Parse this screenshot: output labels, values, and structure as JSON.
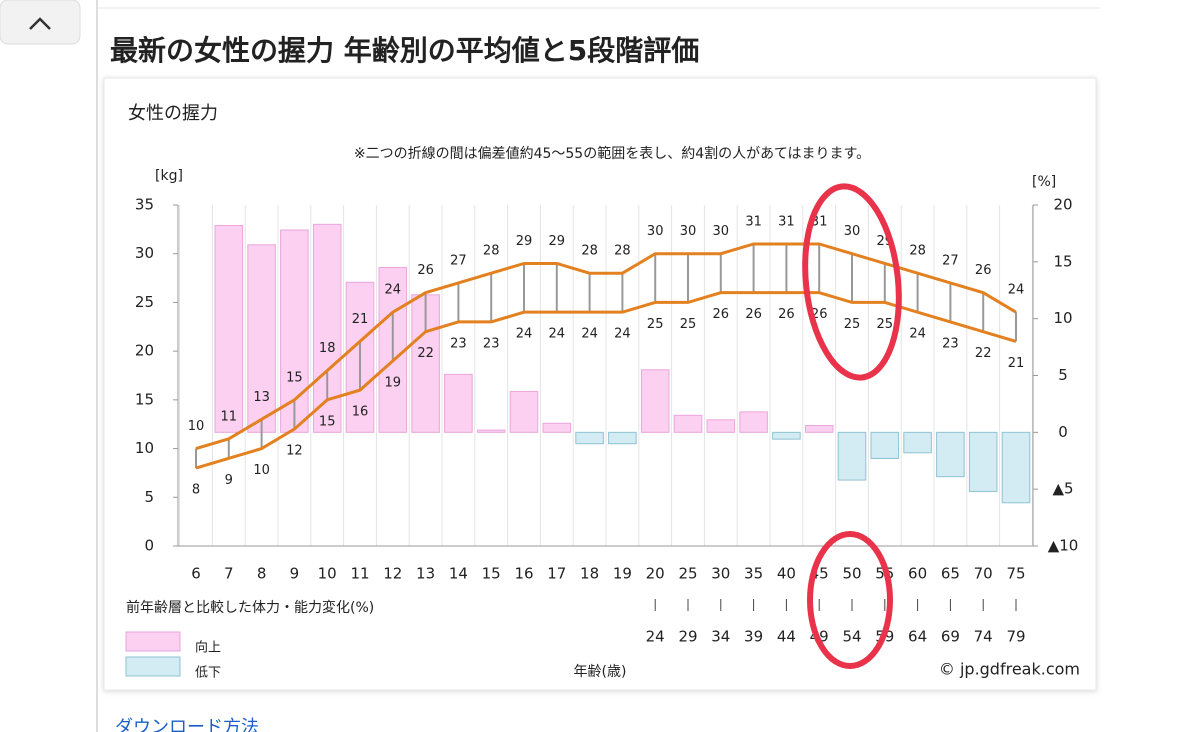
{
  "page": {
    "heading": "最新の女性の握力 年齢別の平均値と5段階評価",
    "link": "ダウンロード方法"
  },
  "chart_data": {
    "type": "combo",
    "title": "女性の握力",
    "note": "※二つの折線の間は偏差値約45〜55の範囲を表し、約4割の人があてはまります。",
    "y_label": "[kg]",
    "y2_label": "[%]",
    "x_label": "年齢(歳)",
    "bar_caption": "前年齢層と比較した体力・能力変化(%)",
    "copyright": "© jp.gdfreak.com",
    "categories": [
      "6",
      "7",
      "8",
      "9",
      "10",
      "11",
      "12",
      "13",
      "14",
      "15",
      "16",
      "17",
      "18",
      "19",
      "20",
      "25",
      "30",
      "35",
      "40",
      "45",
      "50",
      "55",
      "60",
      "65",
      "70",
      "75"
    ],
    "range_end": [
      null,
      null,
      null,
      null,
      null,
      null,
      null,
      null,
      null,
      null,
      null,
      null,
      null,
      null,
      "24",
      "29",
      "34",
      "39",
      "44",
      "49",
      "54",
      "59",
      "64",
      "69",
      "74",
      "79"
    ],
    "ylim": [
      0,
      35
    ],
    "yticks": [
      0,
      5,
      10,
      15,
      20,
      25,
      30,
      35
    ],
    "y2lim": [
      -10,
      20
    ],
    "y2ticks": [
      {
        "value": -10,
        "label": "▲10"
      },
      {
        "value": -5,
        "label": "▲5"
      },
      0,
      5,
      10,
      15,
      20
    ],
    "grid": false,
    "series": [
      {
        "type": "line",
        "color": "#e3801f",
        "values": [
          10,
          11,
          13,
          15,
          18,
          21,
          24,
          26,
          27,
          28,
          29,
          29,
          28,
          28,
          30,
          30,
          30,
          31,
          31,
          31,
          30,
          29,
          28,
          27,
          26,
          24
        ]
      },
      {
        "type": "line",
        "color": "#e3801f",
        "values": [
          8,
          9,
          10,
          12,
          15,
          16,
          19,
          22,
          23,
          23,
          24,
          24,
          24,
          24,
          25,
          25,
          26,
          26,
          26,
          26,
          25,
          25,
          24,
          23,
          22,
          21
        ]
      },
      {
        "type": "bar",
        "axis": "y2",
        "color_up": "#fbd0f0",
        "color_down": "#d3ebf2",
        "values": [
          null,
          18.2,
          16.5,
          17.8,
          18.3,
          13.2,
          14.5,
          12.1,
          5.1,
          0.2,
          3.6,
          0.8,
          -1.0,
          -1.0,
          5.5,
          1.5,
          1.1,
          1.8,
          -0.6,
          0.6,
          -4.2,
          -2.3,
          -1.8,
          -3.9,
          -5.2,
          -6.2
        ]
      }
    ],
    "legend": [
      {
        "label": "向上",
        "color": "#fbd0f0"
      },
      {
        "label": "低下",
        "color": "#d3ebf2"
      }
    ]
  }
}
